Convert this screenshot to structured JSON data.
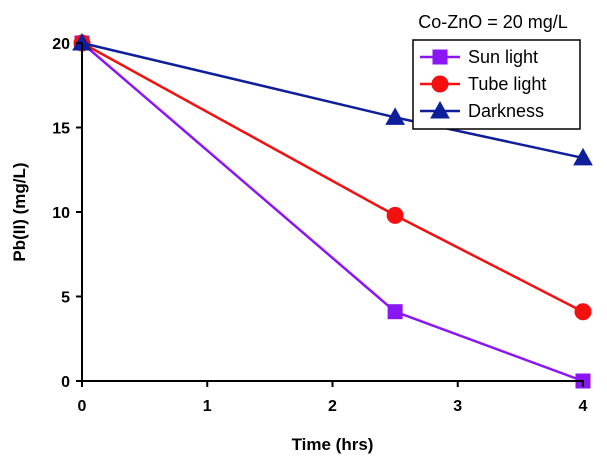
{
  "chart_data": {
    "type": "line",
    "title": "",
    "annotation": "Co-ZnO = 20 mg/L",
    "xlabel": "Time (hrs)",
    "ylabel": "Pb(II) (mg/L)",
    "xlim": [
      0,
      4
    ],
    "ylim": [
      0,
      20
    ],
    "xticks": [
      0,
      1,
      2,
      3,
      4
    ],
    "yticks": [
      0,
      5,
      10,
      15,
      20
    ],
    "grid": false,
    "legend_position": "top-right",
    "series": [
      {
        "name": "Sun light",
        "color": "#8a16f5",
        "marker": "square",
        "x": [
          0,
          2.5,
          4
        ],
        "y": [
          20,
          4.1,
          0.0
        ]
      },
      {
        "name": "Tube light",
        "color": "#f51010",
        "marker": "circle",
        "x": [
          0,
          2.5,
          4
        ],
        "y": [
          20,
          9.8,
          4.1
        ]
      },
      {
        "name": "Darkness",
        "color": "#0f1f9b",
        "marker": "triangle",
        "x": [
          0,
          2.5,
          4
        ],
        "y": [
          20,
          15.6,
          13.2
        ]
      }
    ]
  }
}
